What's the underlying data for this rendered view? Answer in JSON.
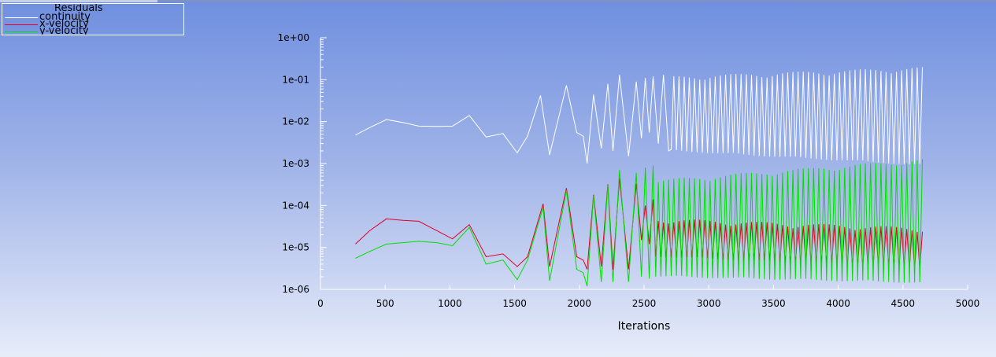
{
  "legend": {
    "title": "Residuals",
    "entries": [
      {
        "label": "continuity",
        "color": "#ffffff"
      },
      {
        "label": "x-velocity",
        "color": "#e0002a"
      },
      {
        "label": "y-velocity",
        "color": "#00e000"
      }
    ]
  },
  "chart_data": {
    "type": "line",
    "title": "",
    "xlabel": "Iterations",
    "ylabel": "",
    "yscale": "log",
    "xlim": [
      0,
      5000
    ],
    "ylim": [
      1e-06,
      1
    ],
    "x_ticks": [
      0,
      500,
      1000,
      1500,
      2000,
      2500,
      3000,
      3500,
      4000,
      4500,
      5000
    ],
    "x_tick_labels": [
      "0",
      "500",
      "1000",
      "1500",
      "2000",
      "2500",
      "3000",
      "3500",
      "4000",
      "4500",
      "5000"
    ],
    "y_ticks": [
      1e-06,
      1e-05,
      0.0001,
      0.001,
      0.01,
      0.1,
      1
    ],
    "y_tick_labels": [
      "1e-06",
      "1e-05",
      "1e-04",
      "1e-03",
      "1e-02",
      "1e-01",
      "1e+00"
    ],
    "grid": false,
    "legend_position": "top-left",
    "series": [
      {
        "name": "continuity",
        "color": "#ffffff",
        "x": [
          270,
          380,
          510,
          640,
          760,
          900,
          1020,
          1150,
          1280,
          1410,
          1520,
          1600,
          1700,
          1770,
          1900,
          1980,
          2030,
          2060,
          2110,
          2170,
          2220,
          2260,
          2310,
          2380,
          2440,
          2480,
          2510,
          2540,
          2570,
          2610,
          2650,
          2690
        ],
        "y": [
          0.0048,
          0.0072,
          0.0112,
          0.0095,
          0.0078,
          0.0077,
          0.0078,
          0.014,
          0.0043,
          0.0052,
          0.0018,
          0.0045,
          0.042,
          0.0016,
          0.073,
          0.0055,
          0.0045,
          0.001,
          0.044,
          0.0023,
          0.08,
          0.002,
          0.13,
          0.0015,
          0.09,
          0.004,
          0.11,
          0.0055,
          0.12,
          0.003,
          0.13,
          0.002
        ],
        "oscillation": {
          "x_start": 2690,
          "x_end": 4660,
          "step": 20,
          "min": [
            0.002,
            0.0009
          ],
          "max": [
            0.12,
            0.2
          ]
        }
      },
      {
        "name": "x-velocity",
        "color": "#e0002a",
        "x": [
          270,
          380,
          510,
          640,
          760,
          900,
          1020,
          1150,
          1280,
          1410,
          1520,
          1600,
          1720,
          1770,
          1900,
          1980,
          2030,
          2060,
          2110,
          2170,
          2220,
          2260,
          2310,
          2380,
          2440,
          2480,
          2510,
          2540,
          2570
        ],
        "y": [
          1.2e-05,
          2.5e-05,
          4.8e-05,
          4.4e-05,
          4.2e-05,
          2.5e-05,
          1.6e-05,
          3.5e-05,
          6e-06,
          7e-06,
          3.5e-06,
          6e-06,
          0.00011,
          3.5e-06,
          0.00026,
          6e-06,
          5e-06,
          3e-06,
          0.00018,
          3.5e-06,
          0.00032,
          3e-06,
          0.00045,
          3e-06,
          0.00033,
          1.5e-05,
          0.0001,
          1.2e-05,
          0.00014
        ],
        "oscillation": {
          "x_start": 2570,
          "x_end": 4660,
          "step": 20,
          "min": [
            6e-06,
            3e-06
          ],
          "max": [
            5e-05,
            3e-05
          ]
        }
      },
      {
        "name": "y-velocity",
        "color": "#00e000",
        "x": [
          270,
          380,
          510,
          640,
          760,
          900,
          1020,
          1150,
          1280,
          1410,
          1520,
          1600,
          1720,
          1770,
          1900,
          1980,
          2030,
          2060,
          2110,
          2170,
          2220,
          2260,
          2310,
          2380,
          2440,
          2480,
          2510,
          2540,
          2570
        ],
        "y": [
          5.5e-06,
          8e-06,
          1.2e-05,
          1.3e-05,
          1.4e-05,
          1.3e-05,
          1.1e-05,
          3e-05,
          4e-06,
          5e-06,
          1.7e-06,
          5e-06,
          9e-05,
          1.6e-06,
          0.00023,
          3e-06,
          2.5e-06,
          1.2e-06,
          0.00017,
          1.5e-06,
          0.0003,
          1.5e-06,
          0.0007,
          1.5e-06,
          0.0006,
          2e-06,
          0.0008,
          1.8e-06,
          0.0009
        ],
        "oscillation": {
          "x_start": 2570,
          "x_end": 4660,
          "step": 20,
          "min": [
            2e-06,
            1.4e-06
          ],
          "max": [
            0.0004,
            0.0013
          ]
        }
      }
    ]
  }
}
